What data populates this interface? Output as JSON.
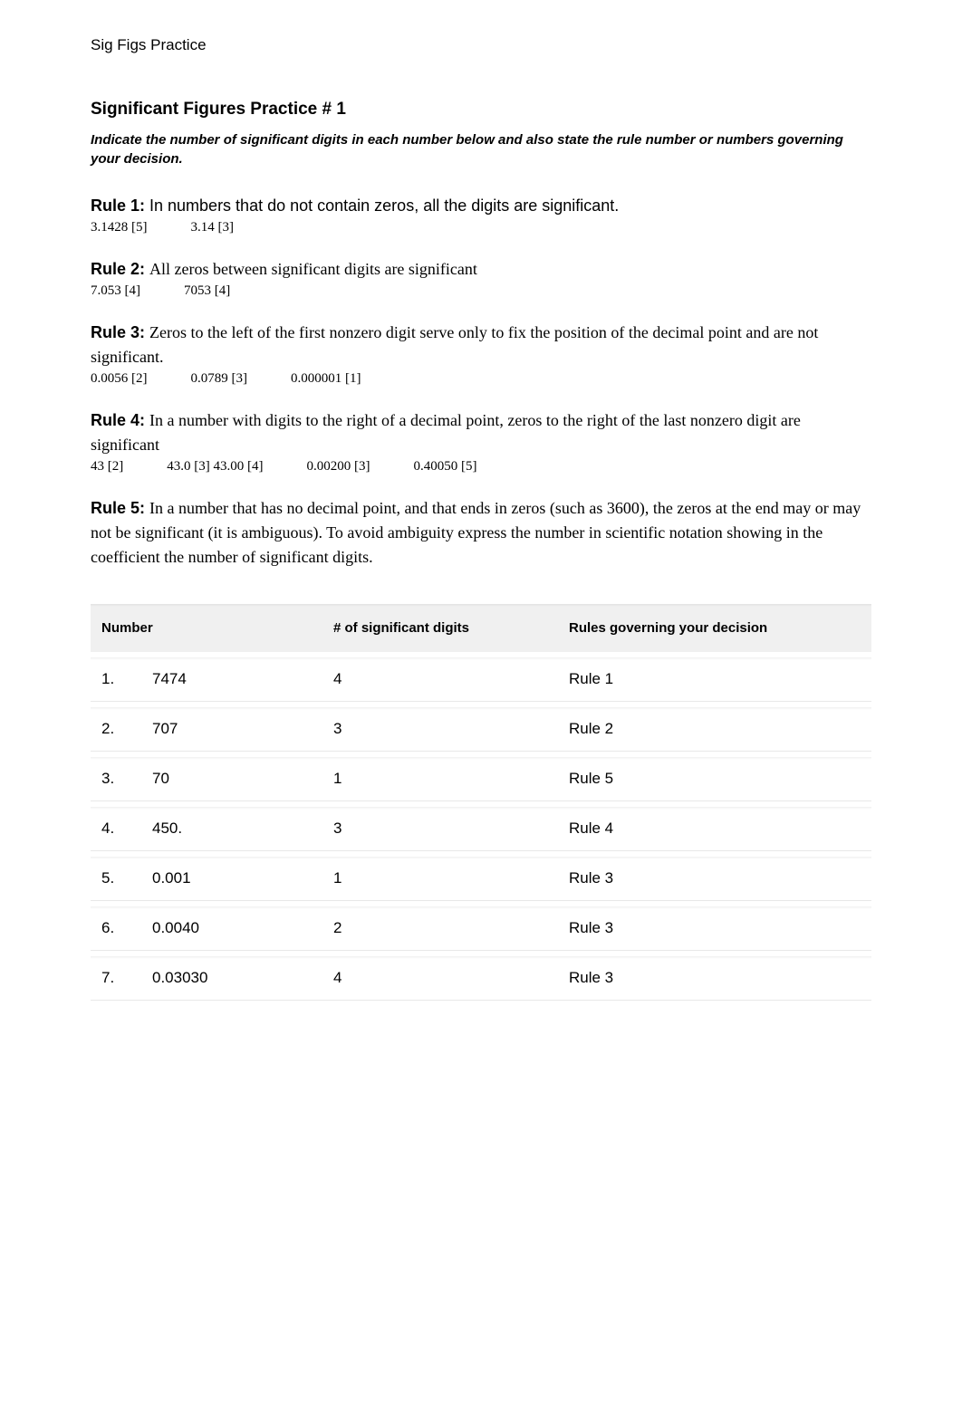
{
  "header_label": "Sig Figs Practice",
  "title": "Significant Figures Practice # 1",
  "instruction": "Indicate the number of significant digits in each number below and also state the rule number or numbers governing your decision.",
  "rules": [
    {
      "label": "Rule 1:",
      "desc": "In numbers that do not contain zeros, all the digits are significant.",
      "font": "sans",
      "examples": [
        "3.1428 [5]",
        "3.14 [3]"
      ]
    },
    {
      "label": "Rule 2:",
      "desc": "All zeros between significant digits are significant",
      "font": "serif",
      "examples": [
        "7.053 [4]",
        "7053 [4]"
      ]
    },
    {
      "label": "Rule 3:",
      "desc": "Zeros to the left of the first nonzero digit serve only to fix the position of the decimal point and are not significant.",
      "font": "serif",
      "examples": [
        "0.0056 [2]",
        "0.0789 [3]",
        "0.000001 [1]"
      ]
    },
    {
      "label": "Rule 4:",
      "desc": "In a number with digits to the right of a decimal point, zeros to the right of the last nonzero digit are significant",
      "font": "serif",
      "examples": [
        "43 [2]",
        "43.0 [3] 43.00 [4]",
        "0.00200 [3]",
        "0.40050 [5]"
      ]
    },
    {
      "label": "Rule 5:",
      "desc": "In a number that has no decimal point, and that ends in zeros (such as 3600), the zeros at the end may or may not be significant (it is ambiguous). To avoid ambiguity express the number in scientific notation showing in the coefficient the number of significant digits.",
      "font": "serif",
      "examples": []
    }
  ],
  "table": {
    "headers": {
      "number": "Number",
      "sig": "# of significant digits",
      "rule": "Rules governing your decision"
    },
    "rows": [
      {
        "idx": "1.",
        "number": "7474",
        "sig": "4",
        "rule": "Rule 1"
      },
      {
        "idx": "2.",
        "number": "707",
        "sig": "3",
        "rule": "Rule 2"
      },
      {
        "idx": "3.",
        "number": "70",
        "sig": "1",
        "rule": "Rule 5"
      },
      {
        "idx": "4.",
        "number": "450.",
        "sig": "3",
        "rule": "Rule 4"
      },
      {
        "idx": "5.",
        "number": "0.001",
        "sig": "1",
        "rule": "Rule 3"
      },
      {
        "idx": "6.",
        "number": "0.0040",
        "sig": "2",
        "rule": "Rule 3"
      },
      {
        "idx": "7.",
        "number": "0.03030",
        "sig": "4",
        "rule": "Rule 3"
      }
    ]
  },
  "colors": {
    "text": "#000000",
    "background": "#ffffff",
    "header_bg": "#f0f0f0",
    "row_border": "#e8e8e8"
  }
}
